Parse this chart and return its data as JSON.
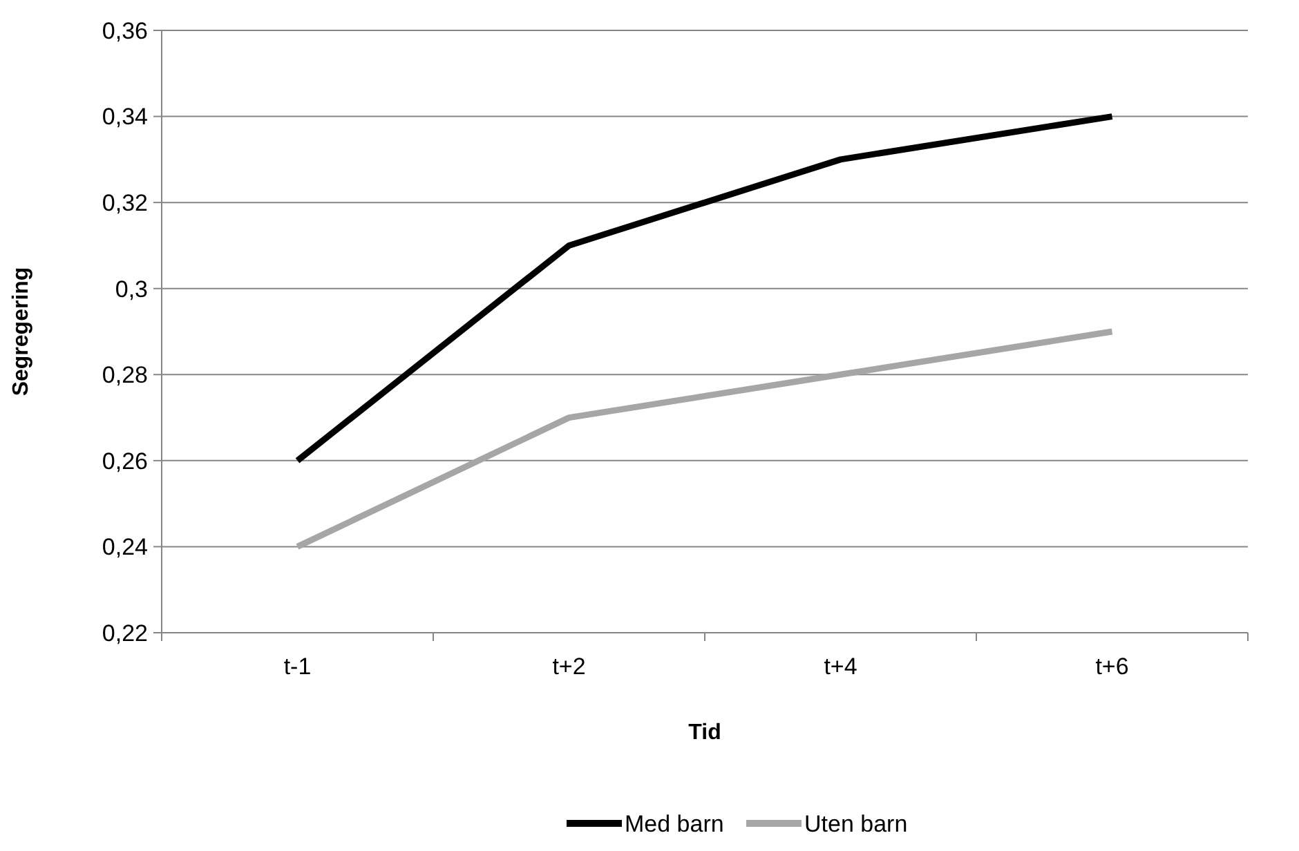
{
  "chart_data": {
    "type": "line",
    "xlabel": "Tid",
    "ylabel": "Segregering",
    "categories": [
      "t-1",
      "t+2",
      "t+4",
      "t+6"
    ],
    "series": [
      {
        "name": "Med barn",
        "color": "#000000",
        "values": [
          0.26,
          0.31,
          0.33,
          0.34
        ]
      },
      {
        "name": "Uten barn",
        "color": "#a6a6a6",
        "values": [
          0.24,
          0.27,
          0.28,
          0.29
        ]
      }
    ],
    "ylim": [
      0.22,
      0.36
    ],
    "yticks": [
      {
        "value": 0.22,
        "label": "0,22"
      },
      {
        "value": 0.24,
        "label": "0,24"
      },
      {
        "value": 0.26,
        "label": "0,26"
      },
      {
        "value": 0.28,
        "label": "0,28"
      },
      {
        "value": 0.3,
        "label": "0,3"
      },
      {
        "value": 0.32,
        "label": "0,32"
      },
      {
        "value": 0.34,
        "label": "0,34"
      },
      {
        "value": 0.36,
        "label": "0,36"
      }
    ],
    "grid": "y",
    "legend": "bottom",
    "marker": "none",
    "line_style": "solid"
  }
}
